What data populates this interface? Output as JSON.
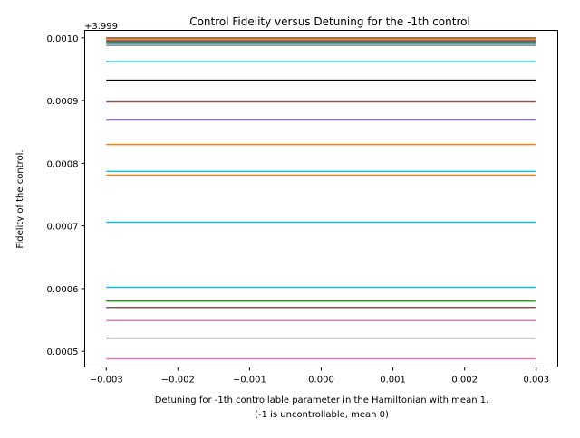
{
  "chart_data": {
    "type": "line",
    "title": "Control Fidelity versus Detuning for the -1th control",
    "xlabel_line1": "Detuning for -1th controllable parameter in the Hamiltonian with mean 1.",
    "xlabel_line2": "(-1 is uncontrollable, mean 0)",
    "ylabel": "Fidelity of the control.",
    "y_offset_label": "+3.999",
    "xlim": [
      -0.0033,
      0.0033
    ],
    "ylim": [
      0.000475,
      0.001012
    ],
    "x_ticks": [
      {
        "value": -0.003,
        "label": "−0.003"
      },
      {
        "value": -0.002,
        "label": "−0.002"
      },
      {
        "value": -0.001,
        "label": "−0.001"
      },
      {
        "value": 0.0,
        "label": "0.000"
      },
      {
        "value": 0.001,
        "label": "0.001"
      },
      {
        "value": 0.002,
        "label": "0.002"
      },
      {
        "value": 0.003,
        "label": "0.003"
      }
    ],
    "y_ticks": [
      {
        "value": 0.0005,
        "label": "0.0005"
      },
      {
        "value": 0.0006,
        "label": "0.0006"
      },
      {
        "value": 0.0007,
        "label": "0.0007"
      },
      {
        "value": 0.0008,
        "label": "0.0008"
      },
      {
        "value": 0.0009,
        "label": "0.0009"
      },
      {
        "value": 0.001,
        "label": "0.0010"
      }
    ],
    "grid": false,
    "legend": "none",
    "x_range": [
      -0.003,
      0.003
    ],
    "series": [
      {
        "y": 0.000488,
        "color": "#e377c2",
        "width": 1.5
      },
      {
        "y": 0.000521,
        "color": "#7f7f7f",
        "width": 1.5
      },
      {
        "y": 0.000549,
        "color": "#e377c2",
        "width": 1.5
      },
      {
        "y": 0.00057,
        "color": "#8c564b",
        "width": 1.5
      },
      {
        "y": 0.00058,
        "color": "#2ca02c",
        "width": 1.5
      },
      {
        "y": 0.000602,
        "color": "#17becf",
        "width": 1.5
      },
      {
        "y": 0.000706,
        "color": "#17becf",
        "width": 1.5
      },
      {
        "y": 0.000781,
        "color": "#ff7f0e",
        "width": 1.5
      },
      {
        "y": 0.000787,
        "color": "#17becf",
        "width": 1.5
      },
      {
        "y": 0.00083,
        "color": "#ff7f0e",
        "width": 1.5
      },
      {
        "y": 0.000869,
        "color": "#9467bd",
        "width": 1.5
      },
      {
        "y": 0.000898,
        "color": "#8c564b",
        "width": 1.5
      },
      {
        "y": 0.000932,
        "color": "#000000",
        "width": 2.2
      },
      {
        "y": 0.000962,
        "color": "#17becf",
        "width": 1.5
      },
      {
        "y": 0.000988,
        "color": "#7f7f7f",
        "width": 1.5
      },
      {
        "y": 0.000991,
        "color": "#1f77b4",
        "width": 1.5
      },
      {
        "y": 0.000993,
        "color": "#2ca02c",
        "width": 1.5
      },
      {
        "y": 0.000995,
        "color": "#d62728",
        "width": 1.5
      },
      {
        "y": 0.000997,
        "color": "#17becf",
        "width": 1.5
      },
      {
        "y": 0.000998,
        "color": "#ff7f0e",
        "width": 1.5
      },
      {
        "y": 0.000999,
        "color": "#bcbd22",
        "width": 1.5
      },
      {
        "y": 0.001,
        "color": "#8c564b",
        "width": 1.5
      }
    ]
  }
}
